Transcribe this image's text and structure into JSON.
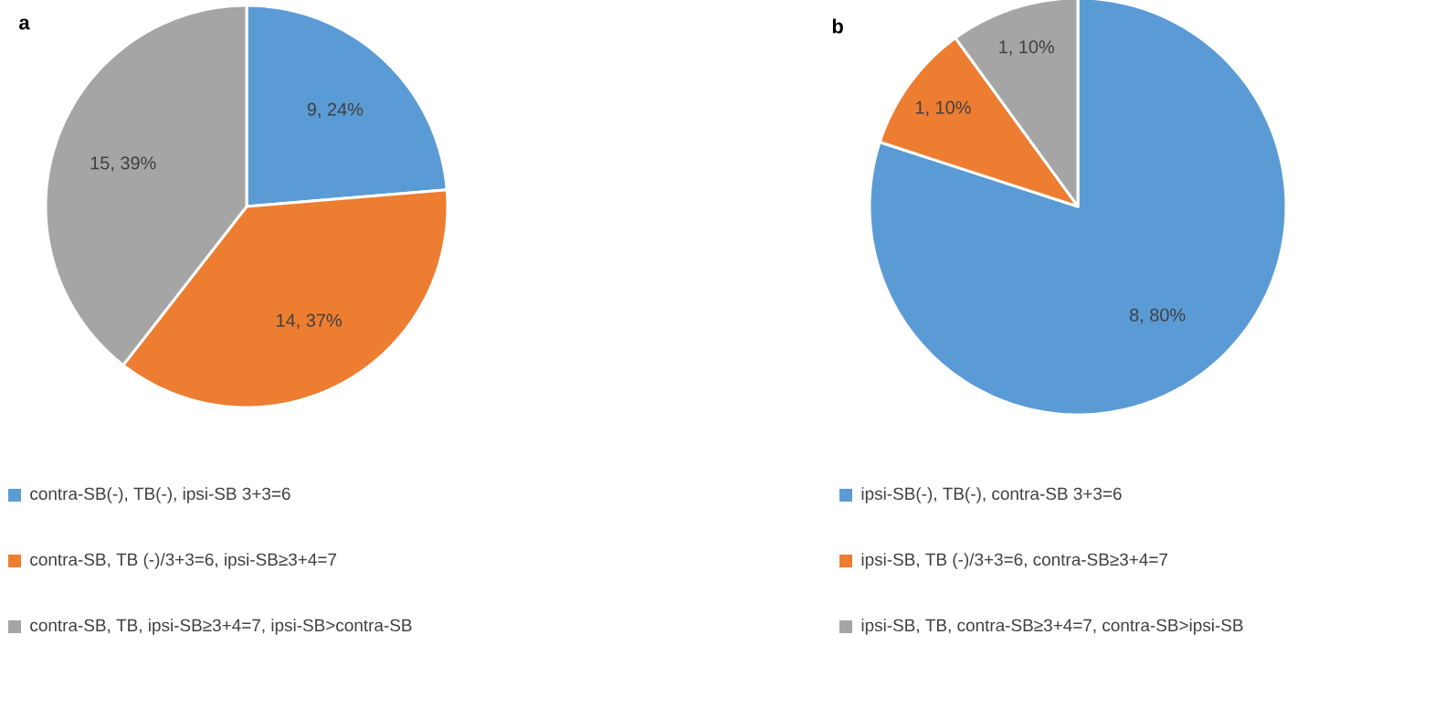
{
  "chart_data": [
    {
      "type": "pie",
      "title": "a",
      "categories": [
        "contra-SB(-), TB(-), ipsi-SB 3+3=6",
        "contra-SB, TB (-)/3+3=6, ipsi-SB≥3+4=7",
        "contra-SB, TB, ipsi-SB≥3+4=7,   ipsi-SB>contra-SB"
      ],
      "values": [
        9,
        14,
        15
      ],
      "value_labels": [
        "9, 24%",
        "14, 37%",
        "15, 39%"
      ],
      "colors": [
        "#5b9bd5",
        "#ed7d31",
        "#a5a5a5"
      ],
      "legend": "bottom"
    },
    {
      "type": "pie",
      "title": "b",
      "categories": [
        "ipsi-SB(-), TB(-), contra-SB 3+3=6",
        "ipsi-SB, TB (-)/3+3=6, contra-SB≥3+4=7",
        "ipsi-SB, TB, contra-SB≥3+4=7,   contra-SB>ipsi-SB"
      ],
      "values": [
        8,
        1,
        1
      ],
      "value_labels": [
        "8, 80%",
        "1, 10%",
        "1, 10%"
      ],
      "colors": [
        "#5b9bd5",
        "#ed7d31",
        "#a5a5a5"
      ],
      "legend": "bottom"
    }
  ]
}
